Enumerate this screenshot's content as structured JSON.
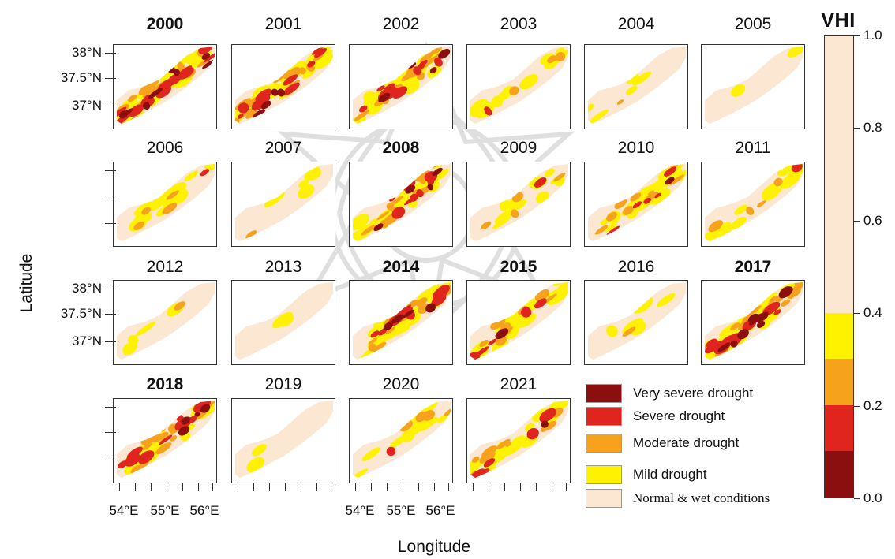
{
  "figure": {
    "colorbar": {
      "title": "VHI",
      "ticks": [
        "1.0",
        "0.8",
        "0.6",
        "0.4",
        "0.2",
        "0.0"
      ],
      "bands": [
        {
          "from": 0.0,
          "to": 0.1,
          "color": "#8b0f0f"
        },
        {
          "from": 0.1,
          "to": 0.2,
          "color": "#e0241e"
        },
        {
          "from": 0.2,
          "to": 0.3,
          "color": "#f7a21d"
        },
        {
          "from": 0.3,
          "to": 0.4,
          "color": "#fff200"
        },
        {
          "from": 0.4,
          "to": 1.0,
          "color": "#fbe7d2"
        }
      ]
    },
    "axis_titles": {
      "x": "Longitude",
      "y": "Latitude"
    },
    "lat_ticks": [
      "38°N",
      "37.5°N",
      "37°N"
    ],
    "lon_ticks": [
      "54°E",
      "55°E",
      "56°E"
    ],
    "legend": [
      {
        "label": "Very severe drought",
        "color": "#8b0f0f",
        "serif": false
      },
      {
        "label": "Severe drought",
        "color": "#e0241e",
        "serif": false
      },
      {
        "label": "Moderate drought",
        "color": "#f7a21d",
        "serif": false
      },
      {
        "label": "Mild drought",
        "color": "#fff200",
        "serif": false
      },
      {
        "label": "Normal & wet conditions",
        "color": "#fbe7d2",
        "serif": true
      }
    ],
    "panels": [
      {
        "year": "2000",
        "bold": true,
        "drought": "extreme"
      },
      {
        "year": "2001",
        "bold": false,
        "drought": "high"
      },
      {
        "year": "2002",
        "bold": false,
        "drought": "high"
      },
      {
        "year": "2003",
        "bold": false,
        "drought": "low"
      },
      {
        "year": "2004",
        "bold": false,
        "drought": "minimal"
      },
      {
        "year": "2005",
        "bold": false,
        "drought": "none"
      },
      {
        "year": "2006",
        "bold": false,
        "drought": "low"
      },
      {
        "year": "2007",
        "bold": false,
        "drought": "minimal"
      },
      {
        "year": "2008",
        "bold": true,
        "drought": "high"
      },
      {
        "year": "2009",
        "bold": false,
        "drought": "low"
      },
      {
        "year": "2010",
        "bold": false,
        "drought": "moderate"
      },
      {
        "year": "2011",
        "bold": false,
        "drought": "low"
      },
      {
        "year": "2012",
        "bold": false,
        "drought": "minimal"
      },
      {
        "year": "2013",
        "bold": false,
        "drought": "none"
      },
      {
        "year": "2014",
        "bold": true,
        "drought": "high"
      },
      {
        "year": "2015",
        "bold": true,
        "drought": "moderate"
      },
      {
        "year": "2016",
        "bold": false,
        "drought": "minimal"
      },
      {
        "year": "2017",
        "bold": true,
        "drought": "extreme"
      },
      {
        "year": "2018",
        "bold": true,
        "drought": "high"
      },
      {
        "year": "2019",
        "bold": false,
        "drought": "none"
      },
      {
        "year": "2020",
        "bold": false,
        "drought": "low"
      },
      {
        "year": "2021",
        "bold": false,
        "drought": "moderate"
      }
    ]
  }
}
